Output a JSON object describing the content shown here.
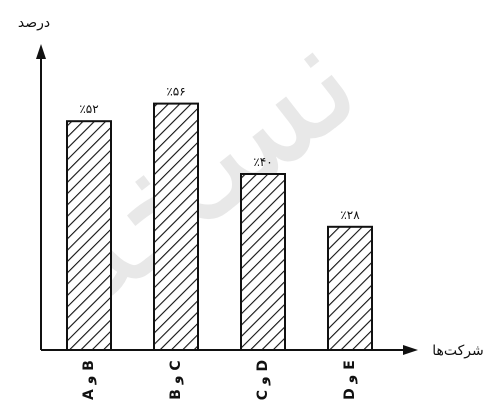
{
  "chart_data": {
    "type": "bar",
    "ylabel": "درصد",
    "xlabel": "شرکت‌ها",
    "categories": [
      "A و B",
      "B و C",
      "C و D",
      "D و E"
    ],
    "values": [
      52,
      56,
      40,
      28
    ],
    "data_labels": [
      "٪۵۲",
      "٪۵۶",
      "٪۴۰",
      "٪۲۸"
    ],
    "bar_pattern": "diagonal-hatch",
    "ylim": [
      0,
      60
    ],
    "grid": false,
    "colors": {
      "bar_stroke": "#111111",
      "axis": "#111111",
      "watermark": "#c8c8c8"
    }
  },
  "watermark": {
    "text": "نسخه"
  }
}
